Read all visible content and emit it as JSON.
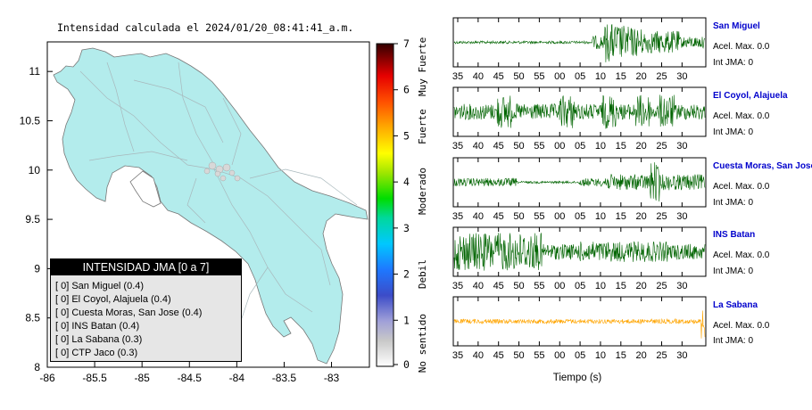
{
  "map": {
    "title": "Intensidad calculada el 2024/01/20_08:41:41_a.m.",
    "xticks": [
      "-86",
      "-85.5",
      "-85",
      "-84.5",
      "-84",
      "-83.5",
      "-83"
    ],
    "yticks": [
      "11",
      "10.5",
      "10",
      "9.5",
      "9",
      "8.5",
      "8"
    ]
  },
  "colorbar": {
    "ticks": [
      "0",
      "1",
      "2",
      "3",
      "4",
      "5",
      "6",
      "7"
    ],
    "labels": [
      "No sentido",
      "Debil",
      "Moderado",
      "Fuerte",
      "Muy Fuerte"
    ]
  },
  "legend": {
    "title": "INTENSIDAD JMA [0 a 7]",
    "items": [
      "[ 0]  San Miguel (0.4)",
      "[ 0]  El Coyol, Alajuela (0.4)",
      "[ 0]  Cuesta Moras, San Jose (0.4)",
      "[ 0]  INS Batan (0.4)",
      "[ 0]  La Sabana (0.3)",
      "[ 0]  CTP Jaco (0.3)"
    ]
  },
  "stations": [
    {
      "name": "San Miguel",
      "accel": "Acel. Max. 0.0",
      "jma": "Int JMA: 0"
    },
    {
      "name": "El Coyol, Alajuela",
      "accel": "Acel. Max. 0.0",
      "jma": "Int JMA: 0"
    },
    {
      "name": "Cuesta Moras, San Jose",
      "accel": "Acel. Max. 0.0",
      "jma": "Int JMA: 0"
    },
    {
      "name": "INS Batan",
      "accel": "Acel. Max. 0.0",
      "jma": "Int JMA: 0"
    },
    {
      "name": "La Sabana",
      "accel": "Acel. Max. 0.0",
      "jma": "Int JMA: 0"
    }
  ],
  "time_axis": {
    "label": "Tiempo (s)",
    "ticks": [
      "35",
      "40",
      "45",
      "50",
      "55",
      "00",
      "05",
      "10",
      "15",
      "20",
      "25",
      "30"
    ]
  },
  "colors": {
    "land": "#b3ecec",
    "trace_green": "#006400",
    "trace_orange": "#ffa500",
    "station_name": "#0000cc"
  },
  "chart_data": [
    {
      "type": "heatmap",
      "title": "Intensidad calculada el 2024/01/20_08:41:41_a.m.",
      "xlim": [
        -86,
        -82.6
      ],
      "ylim": [
        8,
        11.3
      ],
      "x_ticks": [
        -86,
        -85.5,
        -85,
        -84.5,
        -84,
        -83.5,
        -83
      ],
      "y_ticks": [
        8,
        8.5,
        9,
        9.5,
        10,
        10.5,
        11
      ],
      "colorbar": {
        "range": [
          0,
          7
        ],
        "labels": [
          "No sentido",
          "Debil",
          "Moderado",
          "Fuerte",
          "Muy Fuerte"
        ]
      },
      "station_intensities": [
        {
          "name": "San Miguel",
          "jma": 0,
          "value": 0.4
        },
        {
          "name": "El Coyol, Alajuela",
          "jma": 0,
          "value": 0.4
        },
        {
          "name": "Cuesta Moras, San Jose",
          "jma": 0,
          "value": 0.4
        },
        {
          "name": "INS Batan",
          "jma": 0,
          "value": 0.4
        },
        {
          "name": "La Sabana",
          "jma": 0,
          "value": 0.3
        },
        {
          "name": "CTP Jaco",
          "jma": 0,
          "value": 0.3
        }
      ]
    },
    {
      "type": "line",
      "xlabel": "Tiempo (s)",
      "x_ticks": [
        "35",
        "40",
        "45",
        "50",
        "55",
        "00",
        "05",
        "10",
        "15",
        "20",
        "25",
        "30"
      ],
      "series": [
        {
          "name": "San Miguel",
          "max_accel": 0.0,
          "jma": 0
        },
        {
          "name": "El Coyol, Alajuela",
          "max_accel": 0.0,
          "jma": 0
        },
        {
          "name": "Cuesta Moras, San Jose",
          "max_accel": 0.0,
          "jma": 0
        },
        {
          "name": "INS Batan",
          "max_accel": 0.0,
          "jma": 0
        },
        {
          "name": "La Sabana",
          "max_accel": 0.0,
          "jma": 0
        }
      ]
    }
  ]
}
